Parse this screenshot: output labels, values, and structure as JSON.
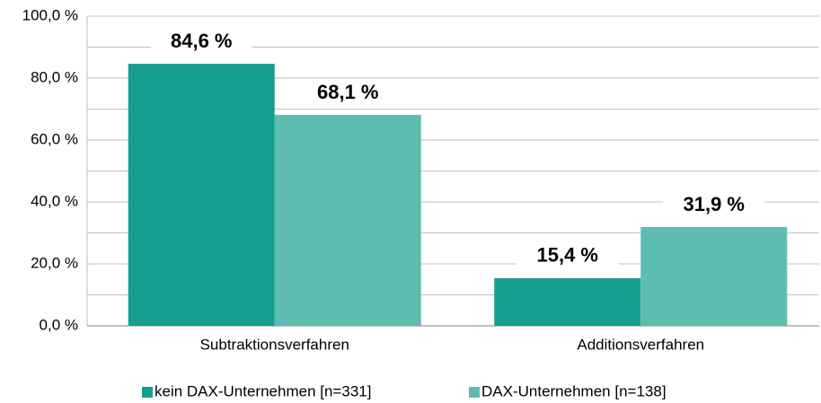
{
  "chart_data": {
    "type": "bar",
    "categories": [
      "Subtraktionsverfahren",
      "Additionsverfahren"
    ],
    "series": [
      {
        "name": "kein DAX-Unternehmen [n=331]",
        "color": "#169e8f",
        "values": [
          84.6,
          15.4
        ],
        "value_labels": [
          "84,6 %",
          "15,4 %"
        ]
      },
      {
        "name": "DAX-Unternehmen [n=138]",
        "color": "#5dbdb0",
        "values": [
          68.1,
          31.9
        ],
        "value_labels": [
          "68,1 %",
          "31,9 %"
        ]
      }
    ],
    "ylim": [
      0,
      100
    ],
    "yticks": [
      {
        "value": 0,
        "label": "0,0 %"
      },
      {
        "value": 20,
        "label": "20,0 %"
      },
      {
        "value": 40,
        "label": "40,0 %"
      },
      {
        "value": 60,
        "label": "60,0 %"
      },
      {
        "value": 80,
        "label": "80,0 %"
      },
      {
        "value": 100,
        "label": "100,0 %"
      }
    ],
    "yminorticks": [
      10,
      30,
      50,
      70,
      90
    ],
    "grid": true,
    "legend": "bottom"
  }
}
